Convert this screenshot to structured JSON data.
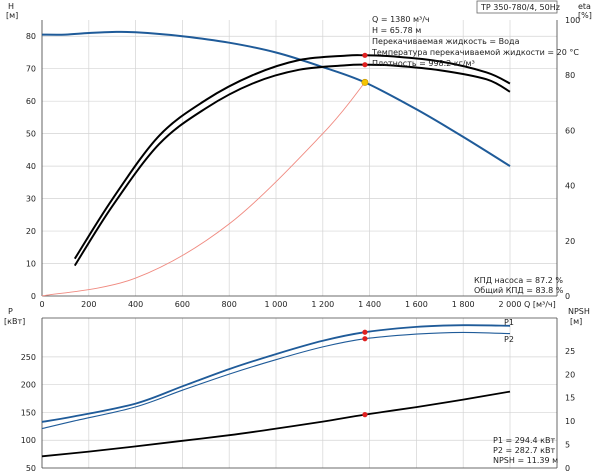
{
  "header": {
    "left_axis_label": "H",
    "left_axis_unit": "[м]",
    "right_axis_label": "eta",
    "right_axis_unit": "[%]",
    "model": "TP 350-780/4, 50Hz"
  },
  "info_top": [
    "Q = 1380 м³/ч",
    "H = 65.78 м",
    "Перекачиваемая жидкость = Вода",
    "Температура перекачиваемой жидкости = 20 °C",
    "Плотность = 998.2 кг/м³"
  ],
  "info_eff": [
    "КПД насоса = 87.2 %",
    "Общий КПД = 83.8 %"
  ],
  "lower_header": {
    "left_label": "P",
    "left_unit": "[кВт]",
    "right_label": "NPSH",
    "right_unit": "[м]"
  },
  "info_bottom": [
    "P1 = 294.4 кВт",
    "P2 = 282.7 кВт",
    "NPSH = 11.39 м"
  ],
  "x_axis": {
    "label": "Q [м³/ч]",
    "ticks": [
      "0",
      "200",
      "400",
      "600",
      "800",
      "1 000",
      "1 200",
      "1 400",
      "1 600",
      "1 800",
      "2 000"
    ]
  },
  "colors": {
    "head": "#1f5b99",
    "efficiency": "#000000",
    "power": "#1f5b99",
    "npsh": "#000000",
    "system": "#f08a80",
    "duty_point": "#e02020",
    "duty_point_head": "#f5c400"
  },
  "chart_data": [
    {
      "type": "line",
      "panel": "upper",
      "x_range": [
        0,
        2000
      ],
      "y_left_range": [
        0,
        85
      ],
      "y_left_ticks": [
        "0",
        "10",
        "20",
        "30",
        "40",
        "50",
        "60",
        "70",
        "80"
      ],
      "y_right_range": [
        0,
        100
      ],
      "y_right_ticks": [
        "0",
        "20",
        "40",
        "60",
        "80",
        "100"
      ],
      "series": [
        {
          "axis": "left",
          "x": [
            0,
            100,
            200,
            300,
            400,
            600,
            800,
            1000,
            1200,
            1380,
            1600,
            1800,
            2000
          ],
          "values": [
            80.5,
            80.5,
            81.0,
            81.3,
            81.2,
            80.0,
            78.0,
            75.0,
            70.5,
            65.78,
            57.5,
            49.0,
            40.0
          ]
        },
        {
          "axis": "left",
          "x": [
            0,
            400,
            800,
            1200,
            1380
          ],
          "values": [
            0,
            5.5,
            22.2,
            50.0,
            65.78
          ]
        },
        {
          "axis": "right",
          "x": [
            140,
            300,
            500,
            700,
            900,
            1100,
            1300,
            1380,
            1500,
            1700,
            1900,
            2000
          ],
          "values": [
            13.5,
            35,
            58,
            71,
            80,
            85.5,
            87.1,
            87.2,
            86.8,
            85,
            81,
            77
          ]
        },
        {
          "axis": "right",
          "x": [
            140,
            300,
            500,
            700,
            900,
            1100,
            1300,
            1380,
            1500,
            1700,
            1900,
            2000
          ],
          "values": [
            11,
            32.5,
            55,
            68,
            77,
            82,
            83.6,
            83.8,
            83.5,
            81.8,
            78.5,
            74
          ]
        }
      ],
      "duty_point": {
        "x": 1380,
        "head": 65.78,
        "eta_pump": 87.2,
        "eta_total": 83.8
      }
    },
    {
      "type": "line",
      "panel": "lower",
      "x_range": [
        0,
        2000
      ],
      "y_left_range": [
        50,
        320
      ],
      "y_left_ticks": [
        "50",
        "100",
        "150",
        "200",
        "250"
      ],
      "y_right_range": [
        0,
        32
      ],
      "y_right_ticks": [
        "0",
        "5",
        "10",
        "15",
        "20",
        "25"
      ],
      "series": [
        {
          "name": "P1",
          "axis": "left",
          "x": [
            0,
            140,
            400,
            600,
            800,
            1000,
            1200,
            1380,
            1600,
            1800,
            2000
          ],
          "values": [
            133,
            143,
            166,
            197,
            228,
            255,
            279,
            294.4,
            304,
            307,
            306
          ]
        },
        {
          "name": "P2",
          "axis": "left",
          "x": [
            0,
            140,
            400,
            600,
            800,
            1000,
            1200,
            1380,
            1600,
            1800,
            2000
          ],
          "values": [
            121,
            135,
            160,
            190,
            219,
            245,
            268,
            282.7,
            291,
            294,
            292
          ]
        },
        {
          "axis": "right",
          "x": [
            0,
            200,
            400,
            600,
            800,
            1000,
            1200,
            1380,
            1600,
            1800,
            2000
          ],
          "values": [
            2.5,
            3.5,
            4.6,
            5.8,
            7.0,
            8.4,
            9.9,
            11.39,
            13.0,
            14.6,
            16.3
          ]
        }
      ],
      "duty_point": {
        "x": 1380,
        "p1": 294.4,
        "p2": 282.7,
        "npsh": 11.39
      }
    }
  ]
}
